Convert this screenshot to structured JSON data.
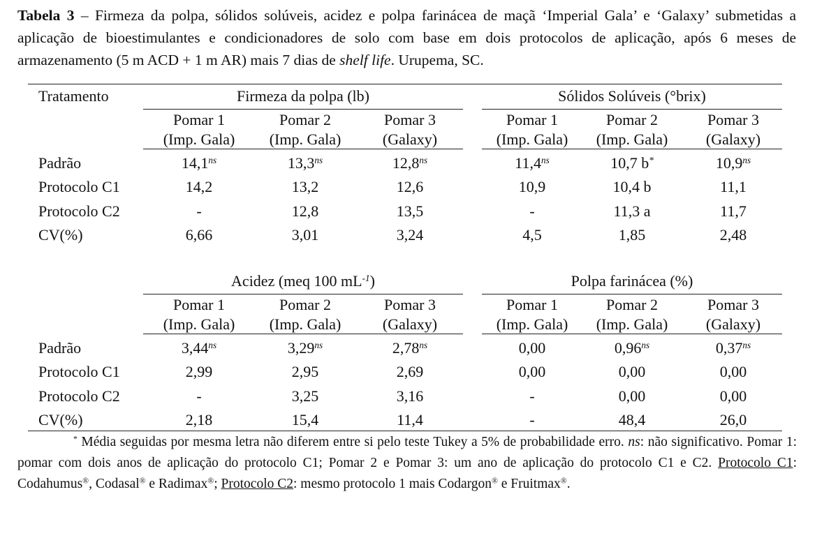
{
  "caption": [
    {
      "t": "Tabela 3",
      "s": "b"
    },
    {
      "t": " – Firmeza da polpa, sólidos solúveis, acidez e polpa farinácea de maçã ‘Imperial Gala’ e ‘Galaxy’ submetidas a aplicação de bioestimulantes e condicionadores de solo com base em dois protocolos de aplicação, após 6 meses de armazenamento (5 m ACD + 1 m AR) mais 7 dias de "
    },
    {
      "t": "shelf life",
      "s": "i"
    },
    {
      "t": ". Urupema, SC."
    }
  ],
  "table": {
    "header": "Tratamento",
    "blocks": [
      {
        "groups": [
          {
            "title": {
              "text": "Firmeza da polpa (lb)"
            },
            "columns": [
              [
                "Pomar 1",
                "(Imp. Gala)"
              ],
              [
                "Pomar 2",
                "(Imp. Gala)"
              ],
              [
                "Pomar 3",
                "(Galaxy)"
              ]
            ]
          },
          {
            "title": {
              "text": "Sólidos Solúveis (°brix)"
            },
            "columns": [
              [
                "Pomar 1",
                "(Imp. Gala)"
              ],
              [
                "Pomar 2",
                "(Imp. Gala)"
              ],
              [
                "Pomar 3",
                "(Galaxy)"
              ]
            ]
          }
        ],
        "rows": [
          {
            "label": "Padrão",
            "cells": [
              {
                "text": "14,1",
                "sup": "ns"
              },
              {
                "text": "13,3",
                "sup": "ns"
              },
              {
                "text": "12,8",
                "sup": "ns"
              },
              {
                "text": "11,4",
                "sup": "ns"
              },
              {
                "text": "10,7 b",
                "sup": "*"
              },
              {
                "text": "10,9",
                "sup": "ns"
              }
            ]
          },
          {
            "label": "Protocolo C1",
            "cells": [
              "14,2",
              "13,2",
              "12,6",
              "10,9",
              "10,4 b",
              "11,1"
            ]
          },
          {
            "label": "Protocolo C2",
            "cells": [
              "-",
              "12,8",
              "13,5",
              "-",
              "11,3 a",
              "11,7"
            ]
          },
          {
            "label": "CV(%)",
            "cells": [
              "6,66",
              "3,01",
              "3,24",
              "4,5",
              "1,85",
              "2,48"
            ]
          }
        ]
      },
      {
        "groups": [
          {
            "title": {
              "text": "Acidez (meq 100 mL",
              "sup": "-1",
              "after": ")"
            },
            "columns": [
              [
                "Pomar 1",
                "(Imp. Gala)"
              ],
              [
                "Pomar 2",
                "(Imp. Gala)"
              ],
              [
                "Pomar 3",
                "(Galaxy)"
              ]
            ]
          },
          {
            "title": {
              "text": "Polpa farinácea (%)"
            },
            "columns": [
              [
                "Pomar 1",
                "(Imp. Gala)"
              ],
              [
                "Pomar 2",
                "(Imp. Gala)"
              ],
              [
                "Pomar 3",
                "(Galaxy)"
              ]
            ]
          }
        ],
        "rows": [
          {
            "label": "Padrão",
            "cells": [
              {
                "text": "3,44",
                "sup": "ns"
              },
              {
                "text": "3,29",
                "sup": "ns"
              },
              {
                "text": "2,78",
                "sup": "ns"
              },
              "0,00",
              {
                "text": "0,96",
                "sup": "ns"
              },
              {
                "text": "0,37",
                "sup": "ns"
              }
            ]
          },
          {
            "label": "Protocolo C1",
            "cells": [
              "2,99",
              "2,95",
              "2,69",
              "0,00",
              "0,00",
              "0,00"
            ]
          },
          {
            "label": "Protocolo C2",
            "cells": [
              "-",
              "3,25",
              "3,16",
              "-",
              "0,00",
              "0,00"
            ]
          },
          {
            "label": "CV(%)",
            "cells": [
              "2,18",
              "15,4",
              "11,4",
              "-",
              "48,4",
              "26,0"
            ]
          }
        ]
      }
    ]
  },
  "footnote": [
    {
      "t": "*",
      "s": "sup"
    },
    {
      "t": " Média seguidas por mesma letra não diferem entre si pelo teste Tukey a 5% de probabilidade erro. "
    },
    {
      "t": "ns",
      "s": "i"
    },
    {
      "t": ": não significativo.  Pomar 1: pomar com dois anos de aplicação do protocolo C1; Pomar 2 e Pomar 3: um ano de aplicação do protocolo C1 e C2. "
    },
    {
      "t": "Protocolo C1",
      "s": "u"
    },
    {
      "t": ": Codahumus"
    },
    {
      "t": "®",
      "s": "sup"
    },
    {
      "t": ", Codasal"
    },
    {
      "t": "®",
      "s": "sup"
    },
    {
      "t": " e Radimax"
    },
    {
      "t": "®",
      "s": "sup"
    },
    {
      "t": "; "
    },
    {
      "t": "Protocolo C2",
      "s": "u"
    },
    {
      "t": ": mesmo protocolo 1 mais Codargon"
    },
    {
      "t": "®",
      "s": "sup"
    },
    {
      "t": " e Fruitmax"
    },
    {
      "t": "®",
      "s": "sup"
    },
    {
      "t": "."
    }
  ]
}
